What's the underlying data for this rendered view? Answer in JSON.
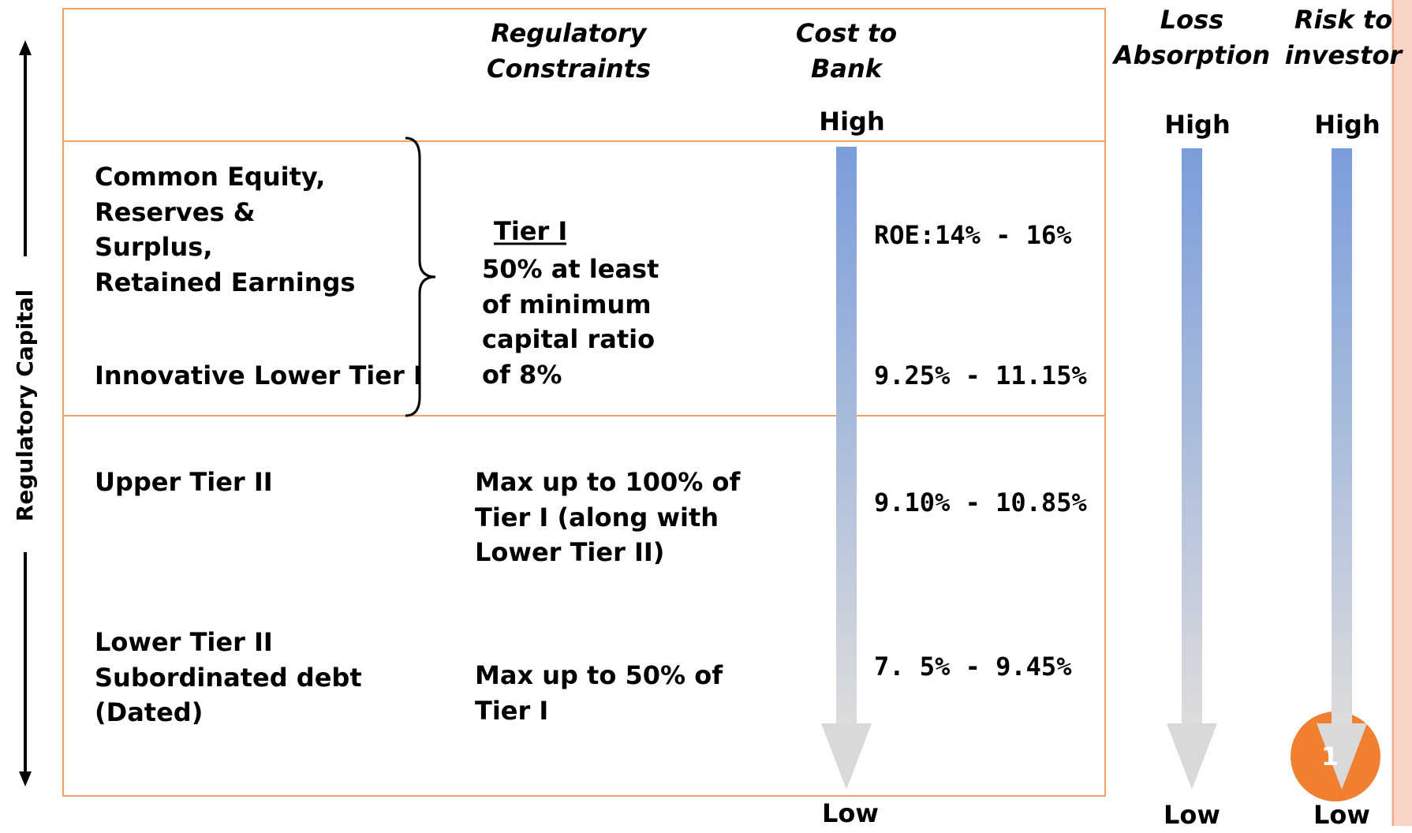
{
  "side_label": "Regulatory Capital",
  "headers": {
    "regulatory_constraints": [
      "Regulatory",
      "Constraints"
    ],
    "cost_to_bank": [
      "Cost to",
      "Bank"
    ],
    "loss_absorption": [
      "Loss",
      "Absorption"
    ],
    "risk_to_investor": [
      "Risk to",
      "investor"
    ]
  },
  "scales": {
    "cost_to_bank": {
      "high": "High",
      "low": "Low"
    },
    "loss_absorption": {
      "high": "High",
      "low": "Low"
    },
    "risk_to_investor": {
      "high": "High",
      "low": "Low"
    }
  },
  "rows": [
    {
      "instrument": [
        "Common Equity,",
        "Reserves &",
        "Surplus,",
        "Retained Earnings"
      ],
      "cost": "ROE:14% - 16%"
    },
    {
      "instrument": [
        "Innovative Lower Tier I"
      ],
      "cost": "9.25% - 11.15%"
    },
    {
      "instrument": [
        "Upper Tier II"
      ],
      "constraint": [
        "Max up to 100% of",
        "Tier I (along with",
        "Lower Tier II)"
      ],
      "cost": "9.10% - 10.85%"
    },
    {
      "instrument": [
        "Lower Tier II",
        "Subordinated debt",
        "(Dated)"
      ],
      "constraint": [
        "Max up to 50% of",
        "Tier I"
      ],
      "cost": "7. 5% - 9.45%"
    }
  ],
  "tier1_constraint": {
    "heading": "Tier I",
    "lines": [
      "50% at least",
      "of minimum",
      "capital ratio",
      "of 8%"
    ]
  },
  "slide_number": "1"
}
